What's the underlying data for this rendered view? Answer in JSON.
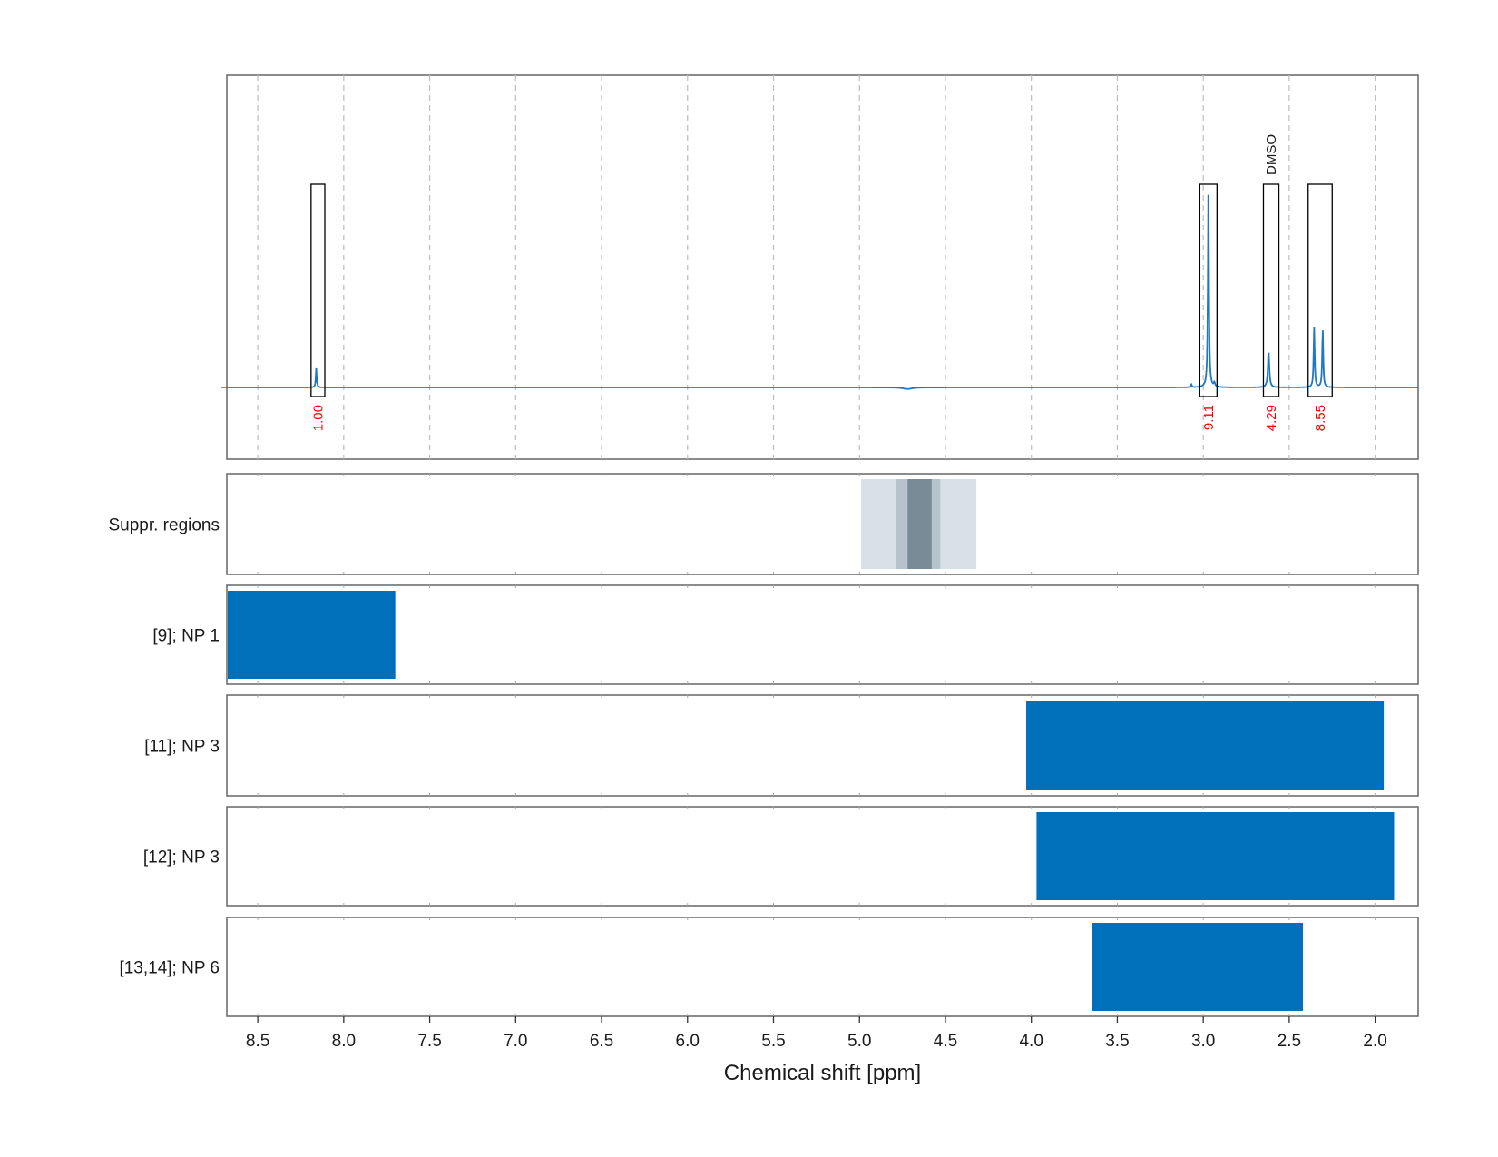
{
  "chart_data": {
    "type": "line",
    "xlabel": "Chemical shift [ppm]",
    "xlim": [
      8.68,
      1.75
    ],
    "x_ticks": [
      "8.5",
      "8.0",
      "7.5",
      "7.0",
      "6.5",
      "6.0",
      "5.5",
      "5.0",
      "4.5",
      "4.0",
      "3.5",
      "3.0",
      "2.5",
      "2.0"
    ],
    "grid": true,
    "spectrum": {
      "baseline": 0,
      "ylim": [
        -0.37,
        1.55
      ],
      "peaks": [
        {
          "x": 8.16,
          "height": 0.1,
          "width": 0.003
        },
        {
          "x": 2.97,
          "height": 1.0,
          "width": 0.0035
        },
        {
          "x": 2.935,
          "height": 0.02,
          "width": 0.004
        },
        {
          "x": 2.62,
          "height": 0.18,
          "width": 0.005
        },
        {
          "x": 2.355,
          "height": 0.3,
          "width": 0.0035
        },
        {
          "x": 2.305,
          "height": 0.29,
          "width": 0.0035
        },
        {
          "x": 3.07,
          "height": 0.015,
          "width": 0.004
        },
        {
          "x": 4.72,
          "height": -0.008,
          "width": 0.03
        }
      ]
    },
    "integration_regions": [
      {
        "range": [
          8.19,
          8.11
        ],
        "label": "1.00"
      },
      {
        "range": [
          3.02,
          2.92
        ],
        "label": "9.11"
      },
      {
        "range": [
          2.65,
          2.56
        ],
        "label": "4.29",
        "annotation": "DMSO"
      },
      {
        "range": [
          2.39,
          2.25
        ],
        "label": "8.55"
      }
    ],
    "rows": [
      {
        "label": "Suppr. regions",
        "bands": [
          {
            "range": [
              4.99,
              4.32
            ],
            "color": "#d8e0e7"
          },
          {
            "range": [
              4.79,
              4.53
            ],
            "color": "#b6c3cd"
          },
          {
            "range": [
              4.72,
              4.58
            ],
            "color": "#798b96"
          }
        ]
      },
      {
        "label": "[9]; NP 1",
        "bands": [
          {
            "range": [
              8.68,
              7.7
            ],
            "color": "#0070bb"
          }
        ]
      },
      {
        "label": "[11]; NP 3",
        "bands": [
          {
            "range": [
              4.03,
              1.95
            ],
            "color": "#0070bb"
          }
        ]
      },
      {
        "label": "[12]; NP 3",
        "bands": [
          {
            "range": [
              3.97,
              1.89
            ],
            "color": "#0070bb"
          }
        ]
      },
      {
        "label": "[13,14]; NP 6",
        "bands": [
          {
            "range": [
              3.65,
              2.42
            ],
            "color": "#0070bb"
          }
        ]
      }
    ],
    "colors": {
      "spectrum": "#1f78c1",
      "integral_label": "#ff0000",
      "frame": "#666666",
      "grid": "#bdbdbd"
    }
  }
}
